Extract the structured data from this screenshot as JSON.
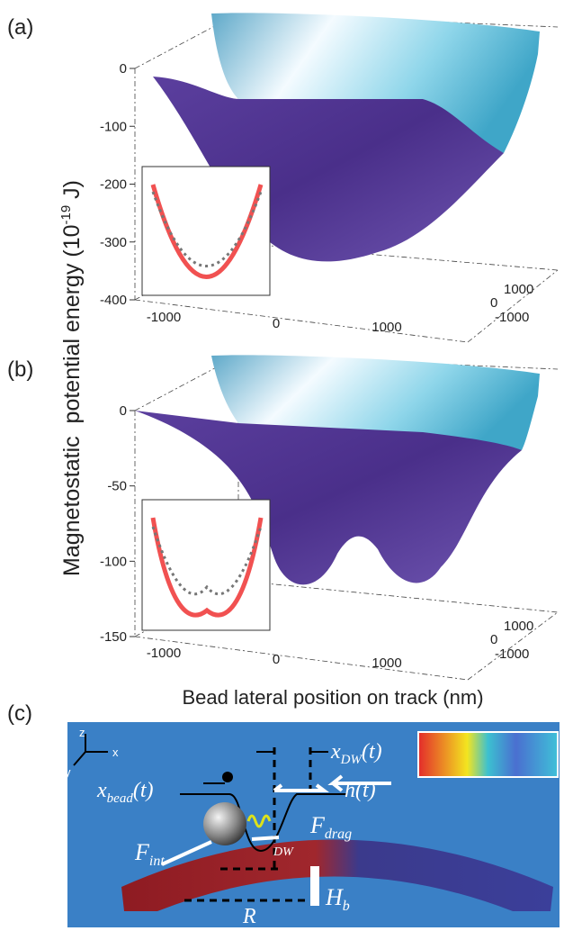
{
  "y_axis_label": {
    "text": "Magnetostatic  potential energy (10",
    "sup": "-19",
    "tail": " J)"
  },
  "x_axis_label": "Bead lateral position on track (nm)",
  "panels": [
    {
      "label": "(a)",
      "z_ticks": [
        0,
        -100,
        -200,
        -300,
        -400
      ],
      "x_ticks": [
        -1000,
        0,
        1000
      ],
      "depth_ticks": [
        1000,
        0,
        -1000
      ]
    },
    {
      "label": "(b)",
      "z_ticks": [
        0,
        -50,
        -100,
        -150
      ],
      "x_ticks": [
        -1000,
        0,
        1000
      ],
      "depth_ticks": [
        1000,
        0,
        -1000
      ]
    }
  ],
  "diagram": {
    "label": "(c)",
    "axes": [
      "z",
      "x",
      "y"
    ],
    "x_dw": {
      "base": "x",
      "sub": "DW",
      "tail": "(t)"
    },
    "x_bead": {
      "base": "x",
      "sub": "bead",
      "tail": "(t)"
    },
    "h": "h(t)",
    "f_drag": {
      "base": "F",
      "sub": "drag"
    },
    "f_int": {
      "base": "F",
      "sub": "int"
    },
    "dw": "DW",
    "h_b": {
      "base": "H",
      "sub": "b"
    },
    "r": "R"
  }
}
